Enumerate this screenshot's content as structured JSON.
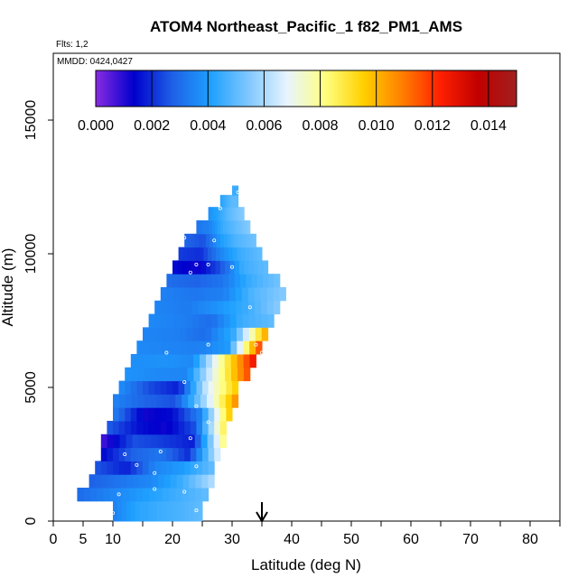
{
  "chart_data": {
    "type": "heatmap",
    "title": "ATOM4 Northeast_Pacific_1 f82_PM1_AMS",
    "flights_label": "Flts: 1,2",
    "mmdd_label": "MMDD: 0424,0427",
    "xlabel": "Latitude (deg N)",
    "ylabel": "Altitude (m)",
    "xlim": [
      0,
      85
    ],
    "ylim": [
      0,
      17500
    ],
    "x_ticks": [
      0,
      5,
      10,
      20,
      30,
      40,
      50,
      60,
      70,
      80
    ],
    "y_ticks": [
      0,
      5000,
      10000,
      15000
    ],
    "colorbar": {
      "min": 0.0,
      "max": 0.015,
      "ticks": [
        "0.000",
        "0.002",
        "0.004",
        "0.006",
        "0.008",
        "0.010",
        "0.012",
        "0.014"
      ],
      "colors": [
        "#8a2be2",
        "#0000cd",
        "#1e60e6",
        "#1ea0ff",
        "#80c8ff",
        "#e8f4ff",
        "#ffff80",
        "#ffd000",
        "#ff8000",
        "#ff2000",
        "#c00000",
        "#a02020"
      ]
    },
    "marker": {
      "latitude": 35,
      "label": "arrow"
    },
    "curtain": {
      "bands": [
        {
          "alt": 500,
          "lat_min": 10,
          "lat_max": 25,
          "values": [
            0.0035,
            0.0042,
            0.0045,
            0.0047,
            0.005
          ]
        },
        {
          "alt": 1000,
          "lat_min": 4,
          "lat_max": 26,
          "values": [
            0.003,
            0.0035,
            0.004,
            0.0045,
            0.005
          ]
        },
        {
          "alt": 1500,
          "lat_min": 6,
          "lat_max": 27,
          "values": [
            0.0028,
            0.0032,
            0.0036,
            0.0045,
            0.006
          ]
        },
        {
          "alt": 2000,
          "lat_min": 7,
          "lat_max": 27,
          "values": [
            0.0025,
            0.0018,
            0.0035,
            0.004,
            0.005
          ]
        },
        {
          "alt": 2500,
          "lat_min": 8,
          "lat_max": 28,
          "values": [
            0.0015,
            0.0028,
            0.0032,
            0.002,
            0.0065
          ]
        },
        {
          "alt": 3000,
          "lat_min": 8,
          "lat_max": 29,
          "values": [
            0.0008,
            0.0025,
            0.0022,
            0.0018,
            0.008
          ]
        },
        {
          "alt": 3500,
          "lat_min": 9,
          "lat_max": 29,
          "values": [
            0.0026,
            0.0016,
            0.0012,
            0.0025,
            0.0085
          ]
        },
        {
          "alt": 4000,
          "lat_min": 10,
          "lat_max": 30,
          "values": [
            0.0032,
            0.0012,
            0.0015,
            0.0035,
            0.0095
          ]
        },
        {
          "alt": 4500,
          "lat_min": 10,
          "lat_max": 31,
          "values": [
            0.0034,
            0.0028,
            0.0025,
            0.006,
            0.0105
          ]
        },
        {
          "alt": 5000,
          "lat_min": 11,
          "lat_max": 31,
          "values": [
            0.0036,
            0.0024,
            0.0018,
            0.0065,
            0.0095
          ]
        },
        {
          "alt": 5500,
          "lat_min": 12,
          "lat_max": 33,
          "values": [
            0.0038,
            0.0036,
            0.0035,
            0.0075,
            0.0115
          ]
        },
        {
          "alt": 6000,
          "lat_min": 13,
          "lat_max": 34,
          "values": [
            0.0037,
            0.0038,
            0.0036,
            0.0082,
            0.0125
          ]
        },
        {
          "alt": 6500,
          "lat_min": 14,
          "lat_max": 35,
          "values": [
            0.0036,
            0.0035,
            0.0034,
            0.004,
            0.0115
          ]
        },
        {
          "alt": 7000,
          "lat_min": 15,
          "lat_max": 36,
          "values": [
            0.0035,
            0.0034,
            0.003,
            0.0045,
            0.01
          ]
        },
        {
          "alt": 7500,
          "lat_min": 16,
          "lat_max": 37,
          "values": [
            0.0036,
            0.0034,
            0.003,
            0.0045,
            0.005
          ]
        },
        {
          "alt": 8000,
          "lat_min": 17,
          "lat_max": 38,
          "values": [
            0.0035,
            0.0033,
            0.0038,
            0.0045,
            0.0055
          ]
        },
        {
          "alt": 8500,
          "lat_min": 18,
          "lat_max": 39,
          "values": [
            0.0034,
            0.0032,
            0.0034,
            0.0048,
            0.0055
          ]
        },
        {
          "alt": 9000,
          "lat_min": 19,
          "lat_max": 38,
          "values": [
            0.003,
            0.0028,
            0.0032,
            0.0045,
            0.0052
          ]
        },
        {
          "alt": 9500,
          "lat_min": 20,
          "lat_max": 36,
          "values": [
            0.0015,
            0.0012,
            0.0025,
            0.0045,
            0.005
          ]
        },
        {
          "alt": 10000,
          "lat_min": 21,
          "lat_max": 35,
          "values": [
            0.0022,
            0.002,
            0.0035,
            0.0045,
            0.005
          ]
        },
        {
          "alt": 10500,
          "lat_min": 22,
          "lat_max": 34,
          "values": [
            0.0028,
            0.0025,
            0.004,
            0.0048,
            0.0052
          ]
        },
        {
          "alt": 11000,
          "lat_min": 24,
          "lat_max": 33,
          "values": [
            0.0032,
            0.0035,
            0.0045,
            0.005,
            0.0055
          ]
        },
        {
          "alt": 11500,
          "lat_min": 26,
          "lat_max": 32,
          "values": [
            0.0038,
            0.0042,
            0.0048,
            0.0052,
            0.0055
          ]
        },
        {
          "alt": 12000,
          "lat_min": 28,
          "lat_max": 31,
          "values": [
            0.0042,
            0.0045,
            0.0048,
            0.005,
            0.005
          ]
        },
        {
          "alt": 12400,
          "lat_min": 30,
          "lat_max": 31,
          "values": [
            0.0045,
            0.0045,
            0.0045,
            0.0045,
            0.0045
          ]
        }
      ],
      "points": [
        [
          10,
          300
        ],
        [
          11,
          1000
        ],
        [
          17,
          1200
        ],
        [
          24,
          400
        ],
        [
          22,
          1100
        ],
        [
          17,
          1800
        ],
        [
          14,
          2100
        ],
        [
          24,
          2050
        ],
        [
          18,
          2600
        ],
        [
          12,
          2500
        ],
        [
          23,
          3100
        ],
        [
          26,
          3700
        ],
        [
          24,
          4300
        ],
        [
          22,
          5200
        ],
        [
          19,
          6300
        ],
        [
          26,
          6600
        ],
        [
          34,
          6600
        ],
        [
          35,
          6300
        ],
        [
          33,
          8000
        ],
        [
          23,
          9300
        ],
        [
          24,
          9600
        ],
        [
          26,
          9600
        ],
        [
          30,
          9500
        ],
        [
          22,
          10600
        ],
        [
          27,
          10500
        ],
        [
          28,
          11700
        ],
        [
          31,
          12300
        ]
      ]
    }
  }
}
